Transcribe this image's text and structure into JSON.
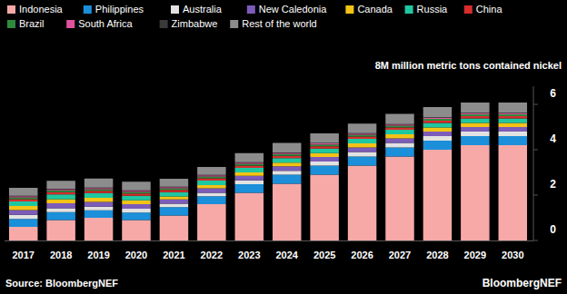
{
  "chart_data": {
    "type": "bar",
    "stacked": true,
    "grid": false,
    "legend": "top-left",
    "y_label": "8M million metric tons contained nickel",
    "annotations": [
      "Source: BloombergNEF",
      "BloombergNEF"
    ],
    "categories": [
      "2017",
      "2018",
      "2019",
      "2020",
      "2021",
      "2022",
      "2023",
      "2024",
      "2025",
      "2026",
      "2027",
      "2028",
      "2029",
      "2030"
    ],
    "ylim": [
      0,
      6.8
    ],
    "yticks": [
      0,
      2,
      4,
      6
    ],
    "series": [
      {
        "name": "Indonesia",
        "color": "#f7a9a8",
        "values": [
          0.6,
          0.9,
          1.0,
          0.9,
          1.1,
          1.6,
          2.1,
          2.5,
          2.9,
          3.3,
          3.7,
          4.0,
          4.2,
          4.2
        ]
      },
      {
        "name": "Philippines",
        "color": "#1b8fd9",
        "values": [
          0.35,
          0.35,
          0.33,
          0.33,
          0.37,
          0.35,
          0.38,
          0.4,
          0.4,
          0.4,
          0.4,
          0.4,
          0.4,
          0.4
        ]
      },
      {
        "name": "Australia",
        "color": "#e2e2e2",
        "values": [
          0.18,
          0.17,
          0.16,
          0.17,
          0.15,
          0.15,
          0.17,
          0.17,
          0.18,
          0.2,
          0.2,
          0.2,
          0.2,
          0.2
        ]
      },
      {
        "name": "New Caledonia",
        "color": "#7c5cb8",
        "values": [
          0.21,
          0.22,
          0.21,
          0.2,
          0.19,
          0.2,
          0.2,
          0.2,
          0.2,
          0.2,
          0.2,
          0.2,
          0.2,
          0.2
        ]
      },
      {
        "name": "Canada",
        "color": "#f3c316",
        "values": [
          0.18,
          0.18,
          0.18,
          0.17,
          0.13,
          0.14,
          0.15,
          0.16,
          0.17,
          0.18,
          0.18,
          0.18,
          0.18,
          0.18
        ]
      },
      {
        "name": "Russia",
        "color": "#1fc7a0",
        "values": [
          0.2,
          0.21,
          0.21,
          0.2,
          0.19,
          0.2,
          0.2,
          0.2,
          0.2,
          0.2,
          0.2,
          0.2,
          0.2,
          0.2
        ]
      },
      {
        "name": "China",
        "color": "#d62d2d",
        "values": [
          0.1,
          0.1,
          0.1,
          0.1,
          0.1,
          0.1,
          0.1,
          0.1,
          0.1,
          0.1,
          0.1,
          0.1,
          0.1,
          0.1
        ]
      },
      {
        "name": "Brazil",
        "color": "#2e8b3e",
        "values": [
          0.08,
          0.08,
          0.07,
          0.07,
          0.07,
          0.08,
          0.08,
          0.08,
          0.08,
          0.08,
          0.08,
          0.08,
          0.08,
          0.08
        ]
      },
      {
        "name": "South Africa",
        "color": "#e0529c",
        "values": [
          0.05,
          0.05,
          0.05,
          0.05,
          0.05,
          0.05,
          0.05,
          0.05,
          0.05,
          0.05,
          0.05,
          0.05,
          0.05,
          0.05
        ]
      },
      {
        "name": "Zimbabwe",
        "color": "#3a3a3a",
        "values": [
          0.02,
          0.02,
          0.02,
          0.02,
          0.02,
          0.02,
          0.02,
          0.02,
          0.02,
          0.02,
          0.02,
          0.02,
          0.02,
          0.02
        ]
      },
      {
        "name": "Rest of the world",
        "color": "#8c8c8c",
        "values": [
          0.35,
          0.35,
          0.4,
          0.38,
          0.35,
          0.35,
          0.4,
          0.42,
          0.42,
          0.42,
          0.45,
          0.45,
          0.45,
          0.45
        ]
      }
    ]
  }
}
